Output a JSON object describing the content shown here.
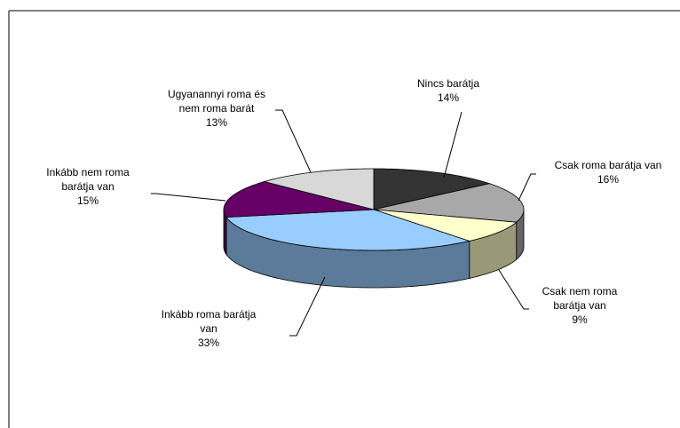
{
  "chart_data": {
    "type": "pie3d",
    "categories": [
      "Nincs barátja",
      "Csak roma barátja van",
      "Csak nem roma barátja van",
      "Inkább roma barátja van",
      "Inkább nem roma barátja van",
      "Ugyanannyi roma és nem roma barát"
    ],
    "values": [
      14,
      16,
      9,
      33,
      15,
      13
    ],
    "value_labels": [
      "14%",
      "16%",
      "9%",
      "33%",
      "15%",
      "13%"
    ],
    "colors": [
      "#333333",
      "#a8a8a8",
      "#ffffcc",
      "#99ccff",
      "#660066",
      "#d8d8d8"
    ]
  }
}
